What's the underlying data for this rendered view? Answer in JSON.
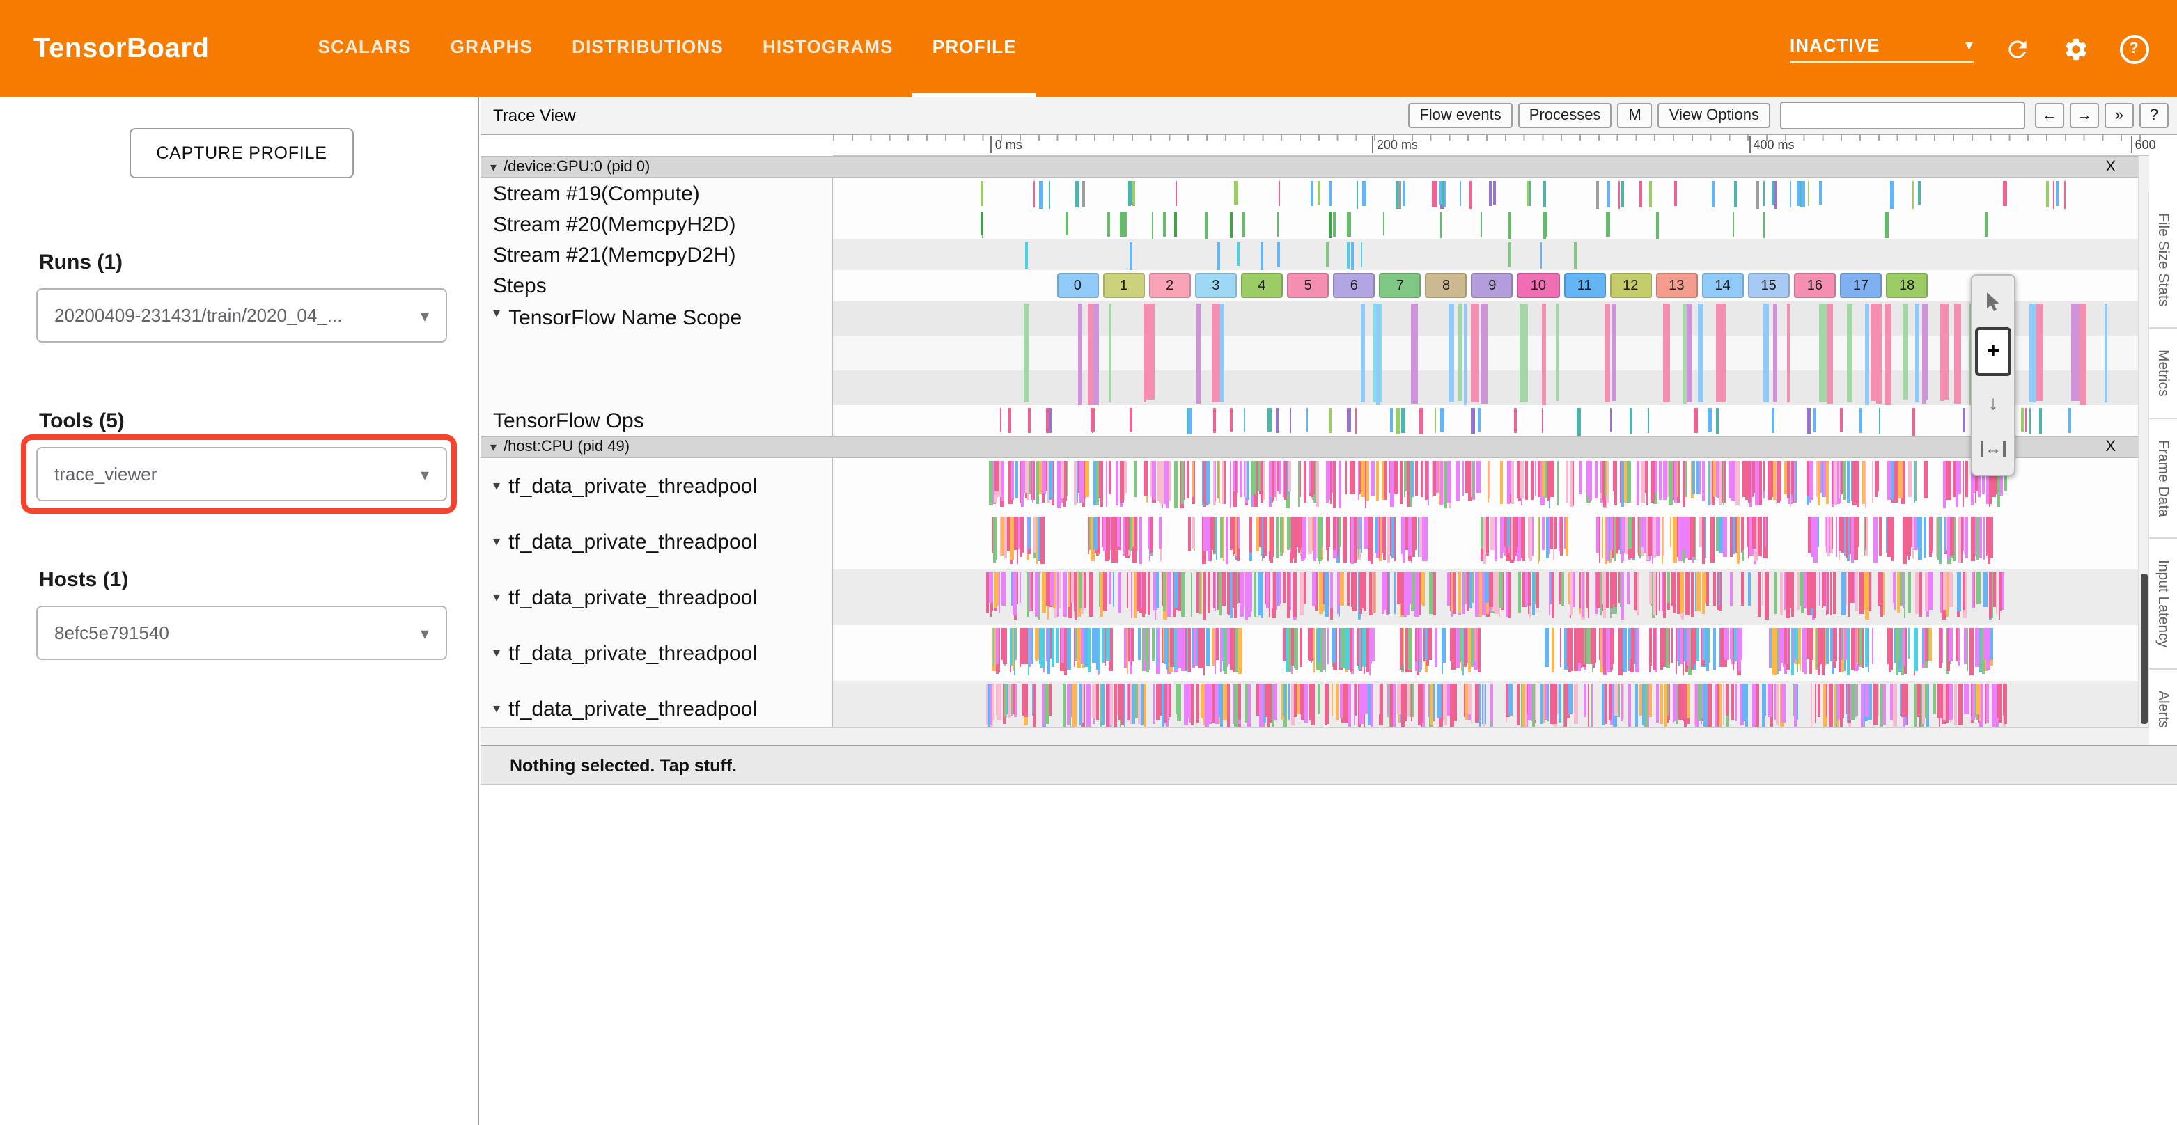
{
  "colors": {
    "header_bg": "#f57c00",
    "annotation": "#f4442e"
  },
  "header": {
    "title": "TensorBoard",
    "tabs": [
      "SCALARS",
      "GRAPHS",
      "DISTRIBUTIONS",
      "HISTOGRAMS",
      "PROFILE"
    ],
    "active_tab": "PROFILE",
    "status_dropdown": "INACTIVE"
  },
  "sidebar": {
    "capture_button": "CAPTURE PROFILE",
    "runs": {
      "label": "Runs (1)",
      "value": "20200409-231431/train/2020_04_..."
    },
    "tools": {
      "label": "Tools (5)",
      "value": "trace_viewer"
    },
    "hosts": {
      "label": "Hosts (1)",
      "value": "8efc5e791540"
    }
  },
  "trace": {
    "title": "Trace View",
    "buttons": [
      "Flow events",
      "Processes",
      "M",
      "View Options"
    ],
    "search_value": "",
    "nav": [
      "←",
      "→",
      "»",
      "?"
    ],
    "ruler_ticks": [
      {
        "label": "0 ms",
        "pct": 12
      },
      {
        "label": "200 ms",
        "pct": 41
      },
      {
        "label": "400 ms",
        "pct": 69.6
      },
      {
        "label": "600",
        "pct": 98.6
      }
    ],
    "gpu": {
      "caret": "▾",
      "title": "/device:GPU:0 (pid 0)",
      "close": "X"
    },
    "rows_gpu": [
      "Stream #19(Compute)",
      "Stream #20(MemcpyH2D)",
      "Stream #21(MemcpyD2H)",
      "Steps",
      "TensorFlow Name Scope",
      "TensorFlow Ops"
    ],
    "cpu": {
      "caret": "▾",
      "title": "/host:CPU (pid 49)",
      "close": "X"
    },
    "rows_cpu": [
      "tf_data_private_threadpool",
      "tf_data_private_threadpool",
      "tf_data_private_threadpool",
      "tf_data_private_threadpool",
      "tf_data_private_threadpool"
    ],
    "row_caret": "▾",
    "side_tabs": [
      "File Size Stats",
      "Metrics",
      "Frame Data",
      "Input Latency",
      "Alerts"
    ],
    "status_bar": "Nothing selected. Tap stuff."
  },
  "steps": {
    "labels": [
      "0",
      "1",
      "2",
      "3",
      "4",
      "5",
      "6",
      "7",
      "8",
      "9",
      "10",
      "11",
      "12",
      "13",
      "14",
      "15",
      "16",
      "17",
      "18"
    ],
    "colors": [
      "#90caf9",
      "#ccd17c",
      "#f8a3b6",
      "#9fd8f5",
      "#9ccc65",
      "#f48fb1",
      "#b3a5e3",
      "#81c784",
      "#cdb98f",
      "#b39ddb",
      "#f06eb4",
      "#64b5f6",
      "#c5cc6b",
      "#f49c8d",
      "#90caf9",
      "#a7c8f2",
      "#f48fb1",
      "#7fb1f2",
      "#9ccc65"
    ]
  },
  "tick_specs": {
    "s19": {
      "seed": 11,
      "w": [
        1,
        3
      ],
      "h": [
        78,
        92
      ],
      "palette": [
        "#64b5f6",
        "#f06292",
        "#4db6ac",
        "#9575cd",
        "#9ccc65",
        "#9e9e9e"
      ],
      "weights": [
        0.3,
        0.2,
        0.15,
        0.15,
        0.1,
        0.1
      ],
      "clusters": [
        [
          11,
          95,
          62
        ]
      ]
    },
    "s20": {
      "seed": 22,
      "w": [
        1,
        2.5
      ],
      "h": [
        78,
        92
      ],
      "palette": [
        "#66bb6a",
        "#43a047"
      ],
      "weights": [
        0.7,
        0.3
      ],
      "clusters": [
        [
          11,
          88,
          30
        ]
      ]
    },
    "s21": {
      "seed": 33,
      "w": [
        1,
        2.5
      ],
      "h": [
        78,
        92
      ],
      "palette": [
        "#4dd0e1",
        "#64b5f6",
        "#81c784"
      ],
      "weights": [
        0.4,
        0.3,
        0.3
      ],
      "clusters": [
        [
          11,
          62,
          14
        ]
      ]
    },
    "scope": {
      "seed": 44,
      "w": [
        2,
        6
      ],
      "h": [
        92,
        98
      ],
      "palette": [
        "#f48fb1",
        "#90caf9",
        "#a5d6a7",
        "#ce93d8",
        "#80deea"
      ],
      "weights": [
        0.3,
        0.25,
        0.2,
        0.15,
        0.1
      ],
      "clusters": [
        [
          11,
          97,
          55
        ]
      ]
    },
    "ops": {
      "seed": 55,
      "w": [
        1,
        3
      ],
      "h": [
        75,
        90
      ],
      "palette": [
        "#64b5f6",
        "#f06292",
        "#4db6ac",
        "#9575cd",
        "#9ccc65"
      ],
      "weights": [
        0.3,
        0.25,
        0.15,
        0.15,
        0.15
      ],
      "clusters": [
        [
          11,
          95,
          52
        ]
      ]
    },
    "cpu1": {
      "seed": 101,
      "w": [
        1,
        3
      ],
      "h": [
        55,
        85
      ],
      "palette": [
        "#f06292",
        "#ea80fc",
        "#f8bbd0",
        "#81c784",
        "#64b5f6",
        "#ffb74d"
      ],
      "weights": [
        0.35,
        0.25,
        0.12,
        0.1,
        0.1,
        0.08
      ],
      "clusters": [
        [
          11.5,
          89,
          420
        ]
      ]
    },
    "cpu2": {
      "seed": 102,
      "w": [
        1,
        3
      ],
      "h": [
        55,
        85
      ],
      "palette": [
        "#f06292",
        "#ea80fc",
        "#f8bbd0",
        "#81c784",
        "#64b5f6",
        "#ffb74d"
      ],
      "weights": [
        0.35,
        0.25,
        0.12,
        0.1,
        0.1,
        0.08
      ],
      "clusters": [
        [
          12,
          16,
          30
        ],
        [
          19,
          25,
          45
        ],
        [
          27,
          45,
          130
        ],
        [
          49,
          56,
          45
        ],
        [
          58,
          71,
          95
        ],
        [
          74,
          88,
          85
        ]
      ]
    },
    "cpu3": {
      "seed": 103,
      "w": [
        1,
        3
      ],
      "h": [
        55,
        85
      ],
      "palette": [
        "#f06292",
        "#ea80fc",
        "#f8bbd0",
        "#81c784",
        "#64b5f6",
        "#ffb74d"
      ],
      "weights": [
        0.35,
        0.25,
        0.12,
        0.1,
        0.1,
        0.08
      ],
      "clusters": [
        [
          11.5,
          89,
          400
        ]
      ]
    },
    "cpu4": {
      "seed": 104,
      "w": [
        1,
        3
      ],
      "h": [
        55,
        85
      ],
      "palette": [
        "#f06292",
        "#ea80fc",
        "#64b5f6",
        "#81c784",
        "#4dd0e1",
        "#ffb74d"
      ],
      "weights": [
        0.35,
        0.2,
        0.15,
        0.12,
        0.1,
        0.08
      ],
      "clusters": [
        [
          12,
          21,
          65
        ],
        [
          22,
          31,
          75
        ],
        [
          34,
          41,
          55
        ],
        [
          43,
          49,
          45
        ],
        [
          54,
          61,
          55
        ],
        [
          62,
          69,
          55
        ],
        [
          71,
          79,
          65
        ],
        [
          80,
          88,
          55
        ]
      ]
    },
    "cpu5": {
      "seed": 105,
      "w": [
        1,
        3
      ],
      "h": [
        55,
        85
      ],
      "palette": [
        "#f06292",
        "#ea80fc",
        "#f8bbd0",
        "#81c784",
        "#64b5f6",
        "#ffb74d"
      ],
      "weights": [
        0.35,
        0.25,
        0.12,
        0.1,
        0.1,
        0.08
      ],
      "clusters": [
        [
          11.5,
          82,
          380
        ],
        [
          82,
          89,
          45
        ]
      ]
    }
  }
}
